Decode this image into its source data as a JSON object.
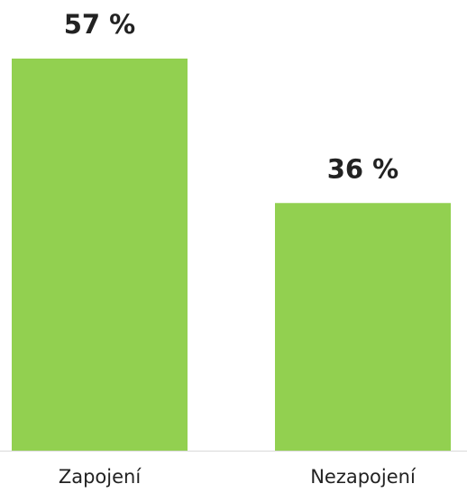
{
  "chart_data": {
    "type": "bar",
    "categories": [
      "Zapojení",
      "Nezapojení"
    ],
    "values": [
      57,
      36
    ],
    "value_labels": [
      "57 %",
      "36 %"
    ],
    "color": "#92d050"
  }
}
